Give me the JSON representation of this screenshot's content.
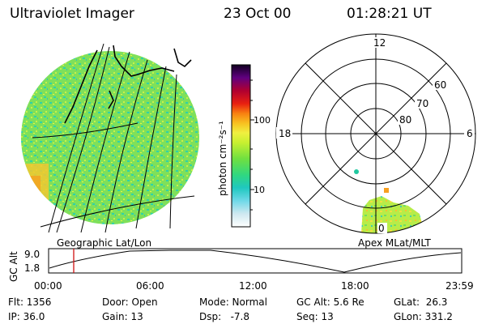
{
  "header": {
    "title": "Ultraviolet Imager",
    "date": "23 Oct 00",
    "time": "01:28:21 UT"
  },
  "geo_panel": {
    "label": "Geographic Lat/Lon"
  },
  "colorbar": {
    "unit_label": "photon cm⁻²s⁻¹",
    "ticks": [
      "100",
      "10"
    ]
  },
  "polar_panel": {
    "label": "Apex MLat/MLT",
    "lat_labels": [
      "60",
      "70",
      "80"
    ],
    "mlt_labels": [
      "12",
      "18",
      "6",
      "0"
    ]
  },
  "altitude_plot": {
    "ylabel": "GC Alt",
    "yticks": [
      "9.0",
      "1.8"
    ],
    "xticks": [
      "00:00",
      "06:00",
      "12:00",
      "18:00",
      "23:59"
    ],
    "current_time_marker": "01:28"
  },
  "info": {
    "flt": "Flt: 1356",
    "ip": "IP: 36.0",
    "door": "Door: Open",
    "gain": "Gain: 13",
    "mode": "Mode: Normal",
    "dsp": "Dsp:   -7.8",
    "gc_alt": "GC Alt: 5.6 Re",
    "seq": "Seq: 13",
    "glat": "GLat:  26.3",
    "glon": "GLon: 331.2"
  }
}
